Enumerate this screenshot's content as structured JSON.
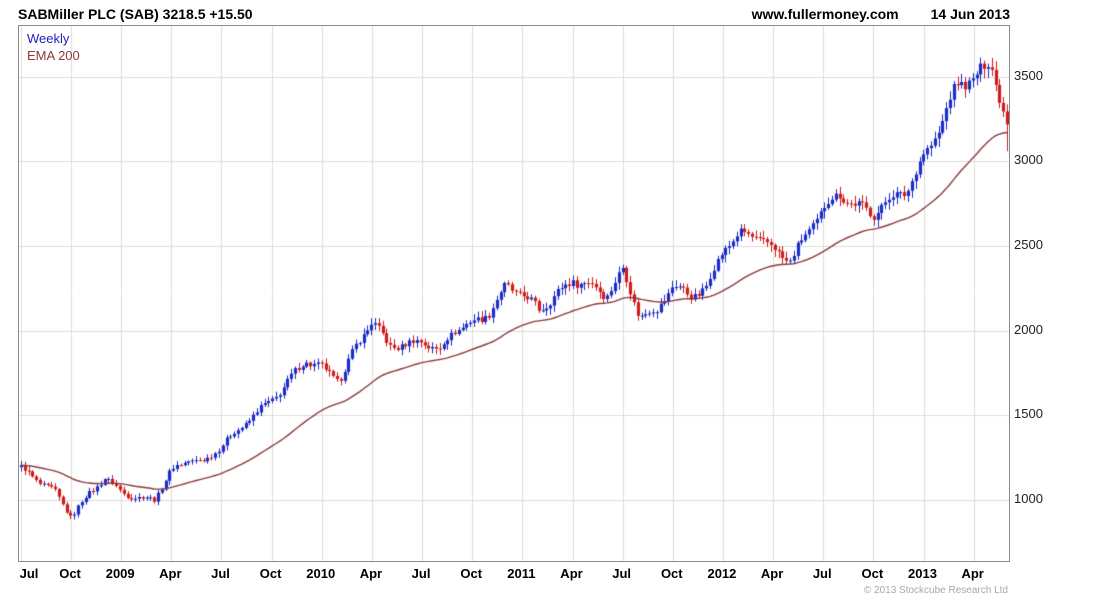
{
  "header": {
    "title": "SABMiller PLC (SAB) 3218.5 +15.50",
    "website": "www.fullermoney.com",
    "date": "14 Jun 2013"
  },
  "legend": {
    "timeframe": "Weekly",
    "ema": "EMA 200"
  },
  "footer": {
    "copyright": "© 2013 Stockcube Research Ltd"
  },
  "chart_data": {
    "type": "candlestick",
    "title": "SABMiller PLC (SAB)",
    "symbol": "SAB",
    "last_price": 3218.5,
    "change": "+15.50",
    "timeframe": "Weekly",
    "overlay": "EMA 200",
    "y_ticks": [
      1000,
      1500,
      2000,
      2500,
      3000,
      3500
    ],
    "ylim": [
      640,
      3800
    ],
    "x_tick_labels": [
      {
        "label": "Jul",
        "month_index": 0
      },
      {
        "label": "Oct",
        "month_index": 3
      },
      {
        "label": "2009",
        "month_index": 6
      },
      {
        "label": "Apr",
        "month_index": 9
      },
      {
        "label": "Jul",
        "month_index": 12
      },
      {
        "label": "Oct",
        "month_index": 15
      },
      {
        "label": "2010",
        "month_index": 18
      },
      {
        "label": "Apr",
        "month_index": 21
      },
      {
        "label": "Jul",
        "month_index": 24
      },
      {
        "label": "Oct",
        "month_index": 27
      },
      {
        "label": "2011",
        "month_index": 30
      },
      {
        "label": "Apr",
        "month_index": 33
      },
      {
        "label": "Jul",
        "month_index": 36
      },
      {
        "label": "Oct",
        "month_index": 39
      },
      {
        "label": "2012",
        "month_index": 42
      },
      {
        "label": "Apr",
        "month_index": 45
      },
      {
        "label": "Jul",
        "month_index": 48
      },
      {
        "label": "Oct",
        "month_index": 51
      },
      {
        "label": "2013",
        "month_index": 54
      },
      {
        "label": "Apr",
        "month_index": 57
      }
    ],
    "monthly_start": "2008-07",
    "monthly_end": "2013-06",
    "monthly_closes": [
      1180,
      1120,
      1060,
      900,
      1020,
      1130,
      1060,
      1010,
      1000,
      1170,
      1250,
      1230,
      1320,
      1400,
      1520,
      1600,
      1700,
      1810,
      1780,
      1720,
      1900,
      2050,
      1900,
      1930,
      1950,
      1870,
      2000,
      2050,
      2120,
      2260,
      2200,
      2120,
      2230,
      2300,
      2260,
      2200,
      2370,
      2100,
      2100,
      2260,
      2210,
      2270,
      2480,
      2550,
      2560,
      2500,
      2420,
      2550,
      2720,
      2820,
      2750,
      2680,
      2760,
      2840,
      3050,
      3200,
      3440,
      3480,
      3620,
      3218.5
    ],
    "last_candle": {
      "close": 3218.5,
      "low": 3060
    },
    "colors": {
      "up": "#1c2cc8",
      "down": "#d01c1c",
      "ema": "#8c3a3a",
      "grid": "#dcdcdc",
      "border": "#8c8c8c"
    }
  }
}
